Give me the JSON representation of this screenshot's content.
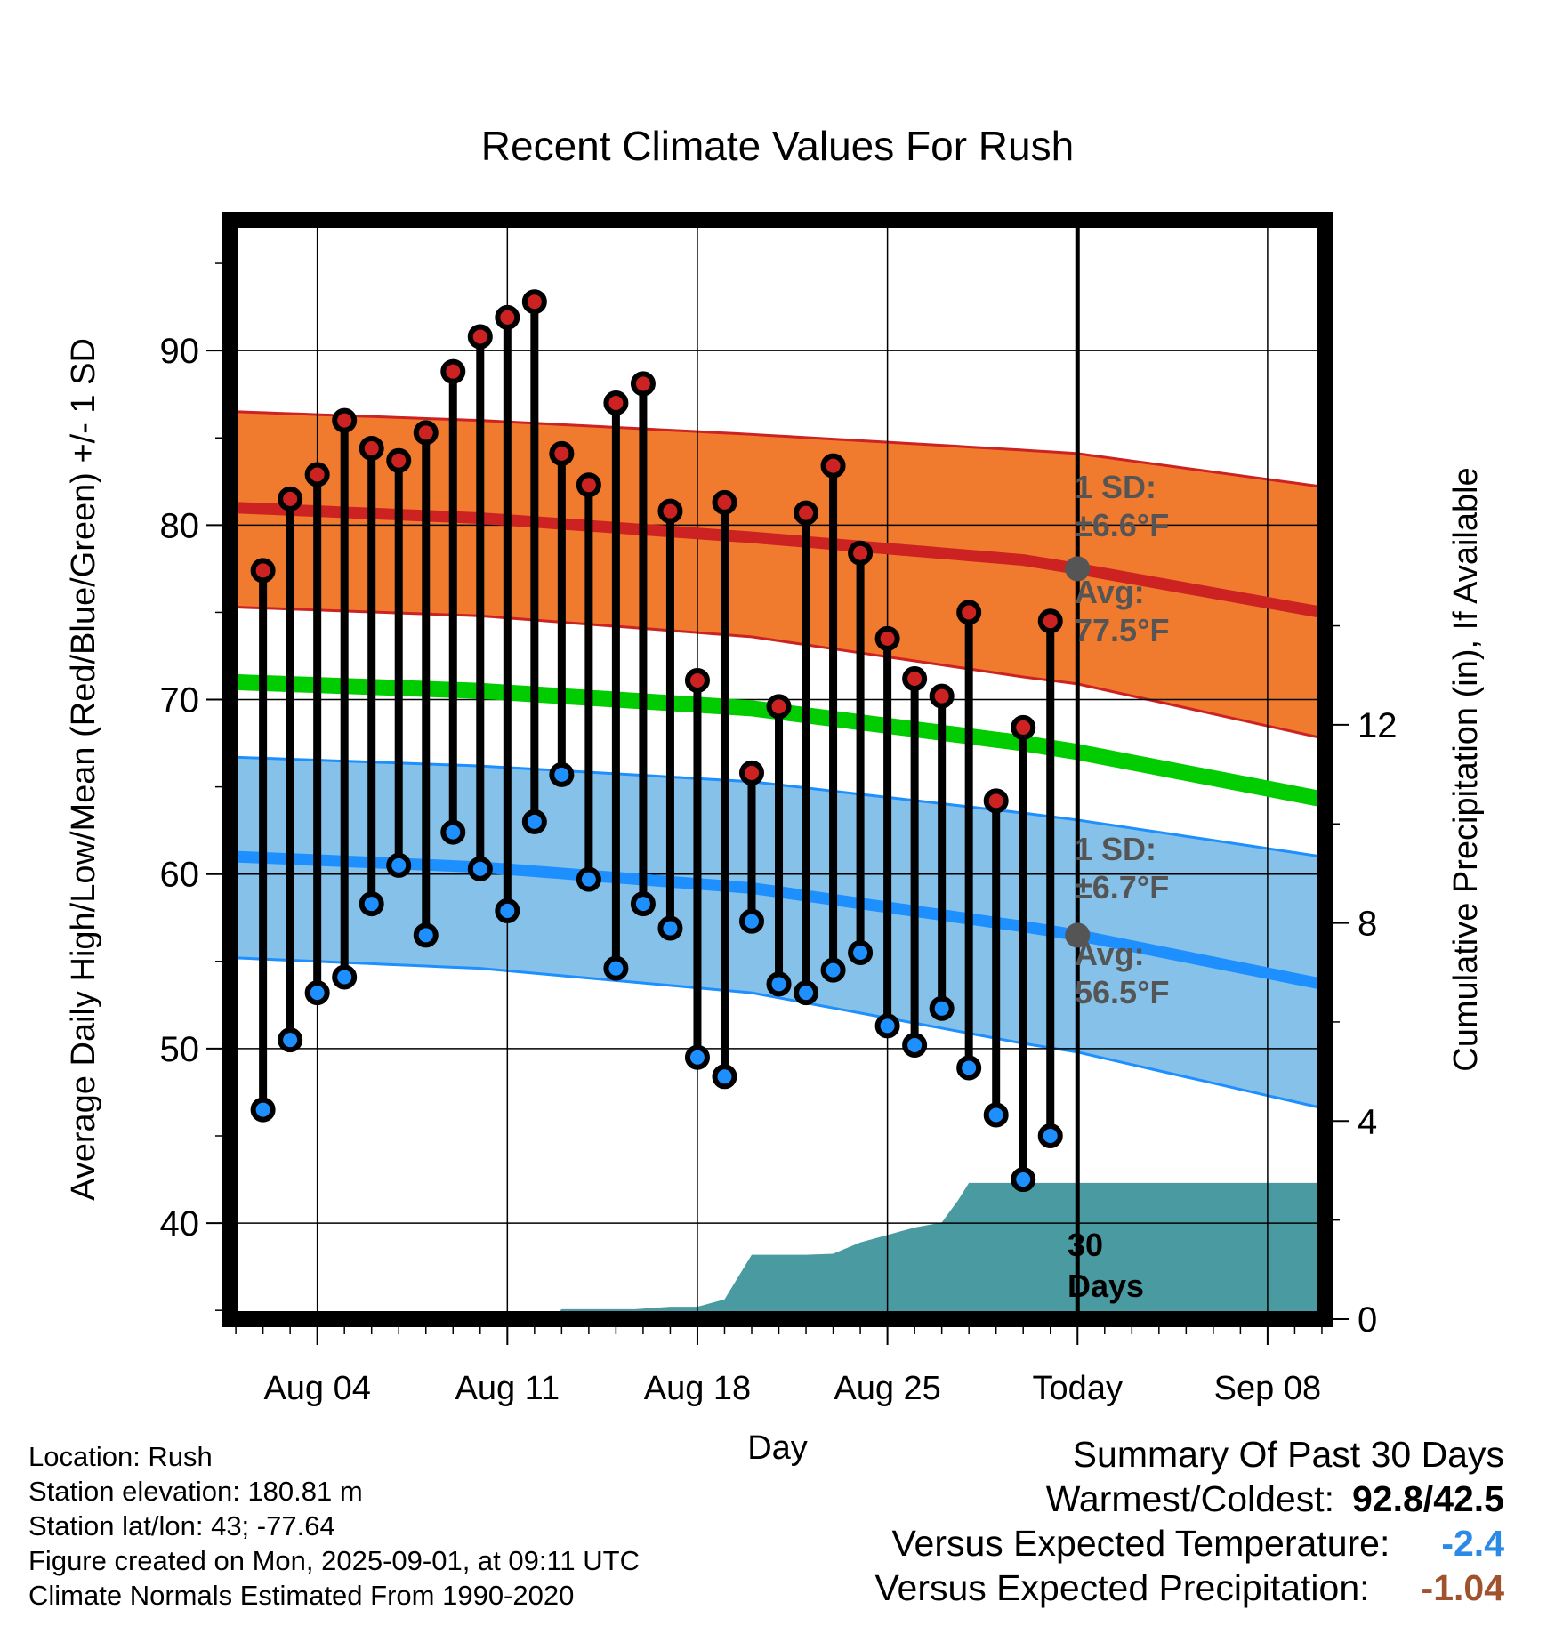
{
  "chart_data": {
    "type": "line",
    "title": "Recent Climate Values For Rush",
    "xlabel": "Day",
    "ylabel": "Average Daily High/Low/Mean (Red/Blue/Green) +/- 1 SD",
    "y2label": "Cumulative Precipitation (in), If Available",
    "x_ticks": [
      "Aug 04",
      "Aug 11",
      "Aug 18",
      "Aug 25",
      "Today",
      "Sep 08"
    ],
    "x_tick_days": [
      4,
      11,
      18,
      25,
      32,
      39
    ],
    "x_range": [
      0.8,
      41.1
    ],
    "today_day": 32,
    "ylim": [
      34.5,
      97.5
    ],
    "y_ticks": [
      40,
      50,
      60,
      70,
      80,
      90
    ],
    "y2lim": [
      0,
      22.2
    ],
    "y2_ticks": [
      0,
      4,
      8,
      12
    ],
    "grid": true,
    "colors": {
      "high_band": "#f07a2e",
      "high_avg": "#cc2222",
      "low_band": "#85c1e8",
      "low_avg": "#1e8fff",
      "mean": "#00cc00",
      "precip": "#4a9aa2",
      "annotation": "#555555",
      "marker_high": "#cc2222",
      "marker_low": "#1e8fff"
    },
    "normals": {
      "days": [
        1,
        10,
        20,
        30,
        32,
        41
      ],
      "high_avg": [
        81.0,
        80.4,
        79.3,
        78.0,
        77.5,
        75.0
      ],
      "high_sd_upper": [
        86.5,
        86.0,
        85.2,
        84.3,
        84.1,
        82.2
      ],
      "high_sd_lower": [
        75.3,
        74.8,
        73.6,
        71.3,
        70.9,
        67.8
      ],
      "mean": [
        71.0,
        70.5,
        69.5,
        67.5,
        67.0,
        64.3
      ],
      "low_avg": [
        61.0,
        60.4,
        59.2,
        57.0,
        56.5,
        53.7
      ],
      "low_sd_upper": [
        66.7,
        66.2,
        65.3,
        63.5,
        63.1,
        61.0
      ],
      "low_sd_lower": [
        55.2,
        54.6,
        53.2,
        50.3,
        49.8,
        46.6
      ]
    },
    "series": [
      {
        "name": "High",
        "values": [
          77.4,
          81.5,
          82.9,
          86.0,
          84.4,
          83.7,
          85.3,
          88.8,
          90.8,
          91.9,
          92.8,
          84.1,
          82.3,
          87.0,
          88.1,
          80.8,
          71.1,
          81.3,
          65.8,
          69.6,
          80.7,
          83.4,
          78.4,
          73.5,
          71.2,
          70.2,
          75.0,
          64.2,
          68.4,
          74.5
        ]
      },
      {
        "name": "Low",
        "values": [
          46.5,
          50.5,
          53.2,
          54.1,
          58.3,
          60.5,
          56.5,
          62.4,
          60.3,
          57.9,
          63.0,
          65.7,
          59.7,
          54.6,
          58.3,
          56.9,
          49.5,
          48.4,
          57.3,
          53.7,
          53.2,
          54.5,
          55.5,
          51.3,
          50.2,
          52.3,
          48.9,
          46.2,
          42.5,
          45.0
        ]
      }
    ],
    "days": [
      2,
      3,
      4,
      5,
      6,
      7,
      8,
      9,
      10,
      11,
      12,
      13,
      14,
      15,
      16,
      17,
      18,
      19,
      20,
      21,
      22,
      23,
      24,
      25,
      26,
      27,
      28,
      29,
      30,
      31
    ],
    "precip_cumulative": {
      "days": [
        1,
        12.6,
        13.0,
        15.7,
        17.0,
        18.0,
        19.0,
        20.0,
        22.0,
        23.0,
        24.0,
        25.0,
        26.0,
        27.0,
        27.6,
        28.0,
        41.1
      ],
      "values": [
        0,
        0,
        0.2,
        0.2,
        0.25,
        0.25,
        0.4,
        1.3,
        1.3,
        1.32,
        1.55,
        1.7,
        1.85,
        1.95,
        2.4,
        2.75,
        2.75
      ]
    },
    "annotations": {
      "high_sd_line1": "1 SD:",
      "high_sd_line2": "±6.6°F",
      "high_avg_line1": "Avg:",
      "high_avg_line2": "77.5°F",
      "high_avg_value": 77.5,
      "low_sd_line1": "1 SD:",
      "low_sd_line2": "±6.7°F",
      "low_avg_line1": "Avg:",
      "low_avg_line2": "56.5°F",
      "low_avg_value": 56.5,
      "days_line1": "30",
      "days_line2": "Days"
    }
  },
  "meta": {
    "location": "Location: Rush",
    "elevation": "Station elevation: 180.81 m",
    "latlon": "Station lat/lon: 43; -77.64",
    "created": "Figure created on Mon, 2025-09-01, at 09:11 UTC",
    "normals": "Climate Normals Estimated From 1990-2020"
  },
  "summary": {
    "title": "Summary Of Past 30 Days",
    "warmest_label": "Warmest/Coldest:",
    "warmest_value": "92.8/42.5",
    "temp_label": "Versus Expected Temperature:",
    "temp_value": "-2.4",
    "temp_color": "#2a8ae6",
    "precip_label": "Versus Expected Precipitation:",
    "precip_value": "-1.04",
    "precip_color": "#a0522d"
  }
}
